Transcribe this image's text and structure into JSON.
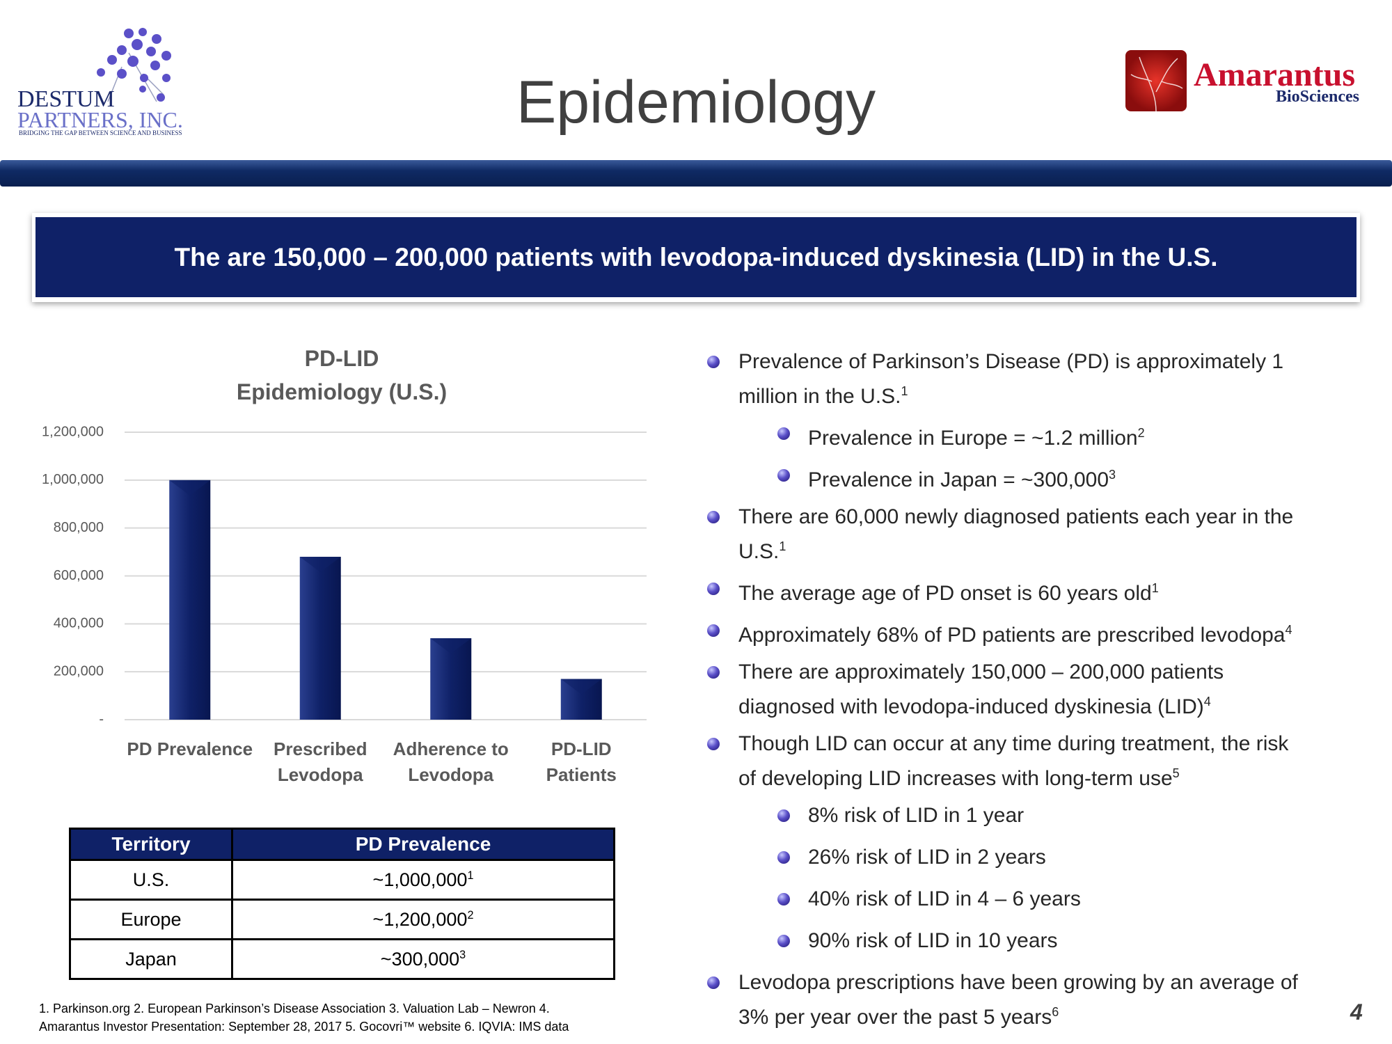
{
  "header": {
    "title": "Epidemiology",
    "left_logo": {
      "name": "DESTUM",
      "subname": "PARTNERS, INC.",
      "tagline": "BRIDGING THE GAP BETWEEN SCIENCE AND BUSINESS"
    },
    "right_logo": {
      "name": "Amarantus",
      "subname": "BioSciences"
    }
  },
  "banner": "The are 150,000 – 200,000 patients with levodopa-induced dyskinesia (LID) in the U.S.",
  "chart_data": {
    "type": "bar",
    "title": [
      "PD-LID",
      "Epidemiology (U.S.)"
    ],
    "categories": [
      "PD Prevalence",
      "Prescribed Levodopa",
      "Adherence to Levodopa",
      "PD-LID Patients"
    ],
    "values": [
      1000000,
      680000,
      340000,
      170000
    ],
    "color": "#0f2167",
    "ylim": [
      0,
      1200000
    ],
    "yticks": [
      {
        "value": 0,
        "label": "-"
      },
      {
        "value": 200000,
        "label": "200,000"
      },
      {
        "value": 400000,
        "label": "400,000"
      },
      {
        "value": 600000,
        "label": "600,000"
      },
      {
        "value": 800000,
        "label": "800,000"
      },
      {
        "value": 1000000,
        "label": "1,000,000"
      },
      {
        "value": 1200000,
        "label": "1,200,000"
      }
    ],
    "grid": true
  },
  "table": {
    "header": [
      "Territory",
      "PD Prevalence"
    ],
    "rows": [
      {
        "territory": "U.S.",
        "prevalence": "~1,000,000",
        "note": "1"
      },
      {
        "territory": "Europe",
        "prevalence": "~1,200,000",
        "note": "2"
      },
      {
        "territory": "Japan",
        "prevalence": "~300,000",
        "note": "3"
      }
    ]
  },
  "bullets": [
    {
      "lines": [
        "Prevalence of Parkinson’s Disease (PD) is approximately 1",
        "million in the U.S."
      ],
      "sup": "1",
      "sub": [
        {
          "lines": [
            "Prevalence in Europe = ~1.2 million"
          ],
          "sup": "2"
        },
        {
          "lines": [
            "Prevalence in Japan = ~300,000"
          ],
          "sup": "3"
        }
      ]
    },
    {
      "lines": [
        "There are 60,000 newly diagnosed patients each year in the",
        "U.S."
      ],
      "sup": "1"
    },
    {
      "lines": [
        "The average age of PD onset is 60 years old"
      ],
      "sup": "1"
    },
    {
      "lines": [
        "Approximately 68% of PD patients are prescribed levodopa"
      ],
      "sup": "4"
    },
    {
      "lines": [
        "There are approximately 150,000 – 200,000 patients",
        "diagnosed with levodopa-induced dyskinesia (LID)"
      ],
      "sup": "4"
    },
    {
      "lines": [
        "Though LID can occur at any time during treatment, the risk",
        "of developing LID increases with long-term use"
      ],
      "sup": "5",
      "sub": [
        {
          "lines": [
            "8% risk of LID in 1 year"
          ]
        },
        {
          "lines": [
            "26% risk of LID in 2 years"
          ]
        },
        {
          "lines": [
            "40% risk of LID in 4 – 6 years"
          ]
        },
        {
          "lines": [
            "90% risk of LID in 10 years"
          ]
        }
      ]
    },
    {
      "lines": [
        "Levodopa prescriptions have been growing by an average of",
        "3% per year over the past 5 years"
      ],
      "sup": "6"
    }
  ],
  "footnote": [
    "1. Parkinson.org 2. European Parkinson’s Disease Association  3. Valuation Lab – Newron 4.",
    "Amarantus Investor Presentation: September 28, 2017 5. Gocovri™ website 6. IQVIA: IMS data"
  ],
  "page_number": "4"
}
